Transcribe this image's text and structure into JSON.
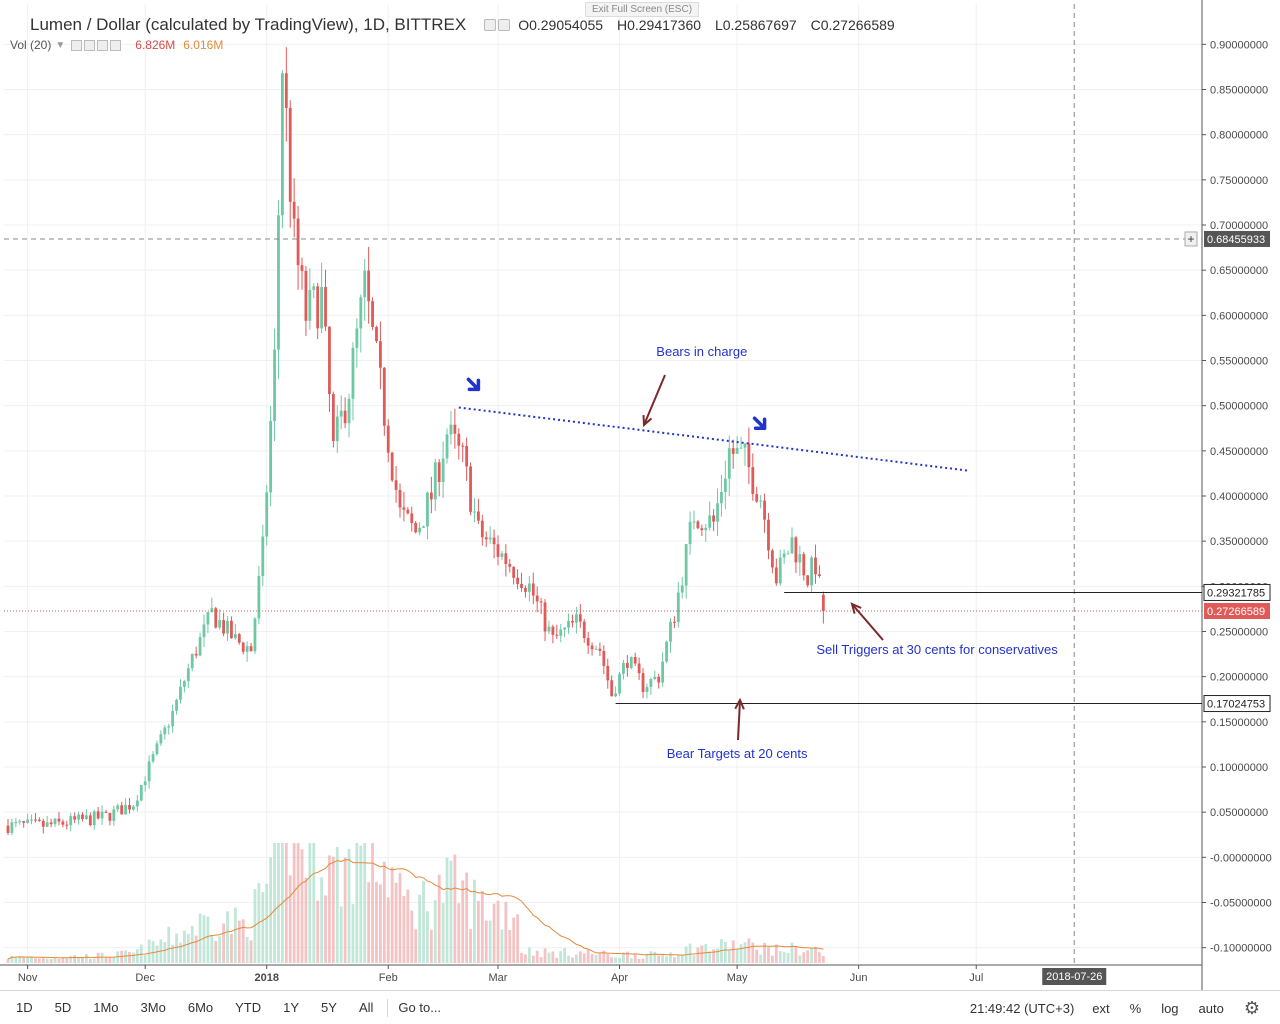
{
  "header": {
    "title": "Lumen / Dollar (calculated by TradingView), 1D, BITTREX",
    "ohlc": {
      "open_label": "O",
      "open": "0.29054055",
      "high_label": "H",
      "high": "0.29417360",
      "low_label": "L",
      "low": "0.25867697",
      "close_label": "C",
      "close": "0.27266589"
    },
    "exit_fullscreen": "Exit Full Screen (ESC)"
  },
  "volume_legend": {
    "label": "Vol (20)",
    "vol": "6.826M",
    "vol_ma": "6.016M"
  },
  "colors": {
    "up": "#6ec8a4",
    "down": "#e05a5a",
    "trend": "#2233cc",
    "annotation": "#2233cc",
    "arrow": "#7a2a2a",
    "vol_ma": "#e38a3a"
  },
  "chart_data": {
    "type": "candlestick",
    "price_axis": {
      "ticks": [
        "0.90000000",
        "0.85000000",
        "0.80000000",
        "0.75000000",
        "0.70000000",
        "0.65000000",
        "0.60000000",
        "0.55000000",
        "0.50000000",
        "0.45000000",
        "0.40000000",
        "0.35000000",
        "0.30000000",
        "0.25000000",
        "0.20000000",
        "0.15000000",
        "0.10000000",
        "0.05000000",
        "-0.00000000",
        "-0.05000000",
        "-0.10000000"
      ],
      "tick_values": [
        0.9,
        0.85,
        0.8,
        0.75,
        0.7,
        0.65,
        0.6,
        0.55,
        0.5,
        0.45,
        0.4,
        0.35,
        0.3,
        0.25,
        0.2,
        0.15,
        0.1,
        0.05,
        0.0,
        -0.05,
        -0.1
      ]
    },
    "time_axis": {
      "labels": [
        "Nov",
        "Dec",
        "2018",
        "Feb",
        "Mar",
        "Apr",
        "May",
        "Jun",
        "Jul"
      ],
      "bold": [
        false,
        false,
        true,
        false,
        false,
        false,
        false,
        false,
        false
      ],
      "day_index": [
        5,
        35,
        66,
        97,
        125,
        156,
        186,
        217,
        247
      ],
      "start": "2017-10-27",
      "end": "2018-07-31"
    },
    "crosshair": {
      "price": 0.68455933,
      "price_label": "0.68455933",
      "date_label": "2018-07-26",
      "day_index": 272
    },
    "levels": [
      {
        "value": 0.29321785,
        "label": "0.29321785",
        "style": "solid"
      },
      {
        "value": 0.27266589,
        "label": "0.27266589",
        "style": "last_price"
      },
      {
        "value": 0.17024753,
        "label": "0.17024753",
        "style": "solid"
      }
    ],
    "anchors": [
      {
        "d": 0,
        "p": 0.035
      },
      {
        "d": 10,
        "p": 0.035
      },
      {
        "d": 25,
        "p": 0.045
      },
      {
        "d": 32,
        "p": 0.06
      },
      {
        "d": 38,
        "p": 0.12
      },
      {
        "d": 42,
        "p": 0.16
      },
      {
        "d": 47,
        "p": 0.22
      },
      {
        "d": 52,
        "p": 0.27
      },
      {
        "d": 58,
        "p": 0.24
      },
      {
        "d": 62,
        "p": 0.23
      },
      {
        "d": 65,
        "p": 0.34
      },
      {
        "d": 68,
        "p": 0.55
      },
      {
        "d": 70,
        "p": 0.88
      },
      {
        "d": 73,
        "p": 0.68
      },
      {
        "d": 76,
        "p": 0.6
      },
      {
        "d": 80,
        "p": 0.62
      },
      {
        "d": 83,
        "p": 0.45
      },
      {
        "d": 87,
        "p": 0.52
      },
      {
        "d": 91,
        "p": 0.63
      },
      {
        "d": 95,
        "p": 0.52
      },
      {
        "d": 100,
        "p": 0.38
      },
      {
        "d": 104,
        "p": 0.36
      },
      {
        "d": 108,
        "p": 0.4
      },
      {
        "d": 112,
        "p": 0.47
      },
      {
        "d": 116,
        "p": 0.44
      },
      {
        "d": 120,
        "p": 0.36
      },
      {
        "d": 127,
        "p": 0.33
      },
      {
        "d": 133,
        "p": 0.3
      },
      {
        "d": 139,
        "p": 0.24
      },
      {
        "d": 145,
        "p": 0.26
      },
      {
        "d": 151,
        "p": 0.23
      },
      {
        "d": 154,
        "p": 0.18
      },
      {
        "d": 158,
        "p": 0.22
      },
      {
        "d": 162,
        "p": 0.19
      },
      {
        "d": 166,
        "p": 0.2
      },
      {
        "d": 170,
        "p": 0.27
      },
      {
        "d": 175,
        "p": 0.38
      },
      {
        "d": 180,
        "p": 0.37
      },
      {
        "d": 184,
        "p": 0.45
      },
      {
        "d": 188,
        "p": 0.44
      },
      {
        "d": 192,
        "p": 0.4
      },
      {
        "d": 196,
        "p": 0.31
      },
      {
        "d": 200,
        "p": 0.35
      },
      {
        "d": 204,
        "p": 0.31
      },
      {
        "d": 206,
        "p": 0.325
      },
      {
        "d": 208,
        "p": 0.2727
      }
    ],
    "trendline": {
      "from": {
        "d": 115,
        "p": 0.498
      },
      "to": {
        "d": 245,
        "p": 0.428
      }
    },
    "annotations": [
      {
        "text": "Bears in charge",
        "d": 177,
        "p": 0.555
      },
      {
        "text": "Sell Triggers at 30 cents for conservatives",
        "d": 237,
        "p": 0.225
      },
      {
        "text": "Bear Targets at 20 cents",
        "d": 186,
        "p": 0.11
      }
    ]
  },
  "bottom": {
    "timeframes": [
      "1D",
      "5D",
      "1Mo",
      "3Mo",
      "6Mo",
      "YTD",
      "1Y",
      "5Y",
      "All"
    ],
    "goto": "Go to...",
    "clock": "21:49:42 (UTC+3)",
    "ext": "ext",
    "percent": "%",
    "log": "log",
    "auto": "auto"
  }
}
